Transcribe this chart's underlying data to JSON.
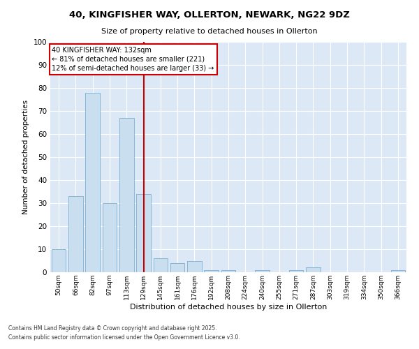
{
  "title1": "40, KINGFISHER WAY, OLLERTON, NEWARK, NG22 9DZ",
  "title2": "Size of property relative to detached houses in Ollerton",
  "xlabel": "Distribution of detached houses by size in Ollerton",
  "ylabel": "Number of detached properties",
  "categories": [
    "50sqm",
    "66sqm",
    "82sqm",
    "97sqm",
    "113sqm",
    "129sqm",
    "145sqm",
    "161sqm",
    "176sqm",
    "192sqm",
    "208sqm",
    "224sqm",
    "240sqm",
    "255sqm",
    "271sqm",
    "287sqm",
    "303sqm",
    "319sqm",
    "334sqm",
    "350sqm",
    "366sqm"
  ],
  "values": [
    10,
    33,
    78,
    30,
    67,
    34,
    6,
    4,
    5,
    1,
    1,
    0,
    1,
    0,
    1,
    2,
    0,
    0,
    0,
    0,
    1
  ],
  "bar_color": "#c9dff0",
  "bar_edge_color": "#7aafd4",
  "background_color": "#dce8f5",
  "plot_bg_color": "#dce8f5",
  "grid_color": "#ffffff",
  "vline_x": 5,
  "vline_color": "#cc0000",
  "annotation_text": "40 KINGFISHER WAY: 132sqm\n← 81% of detached houses are smaller (221)\n12% of semi-detached houses are larger (33) →",
  "annotation_box_color": "#ffffff",
  "annotation_box_edge": "#cc0000",
  "footnote1": "Contains HM Land Registry data © Crown copyright and database right 2025.",
  "footnote2": "Contains public sector information licensed under the Open Government Licence v3.0.",
  "ylim": [
    0,
    100
  ],
  "yticks": [
    0,
    10,
    20,
    30,
    40,
    50,
    60,
    70,
    80,
    90,
    100
  ]
}
